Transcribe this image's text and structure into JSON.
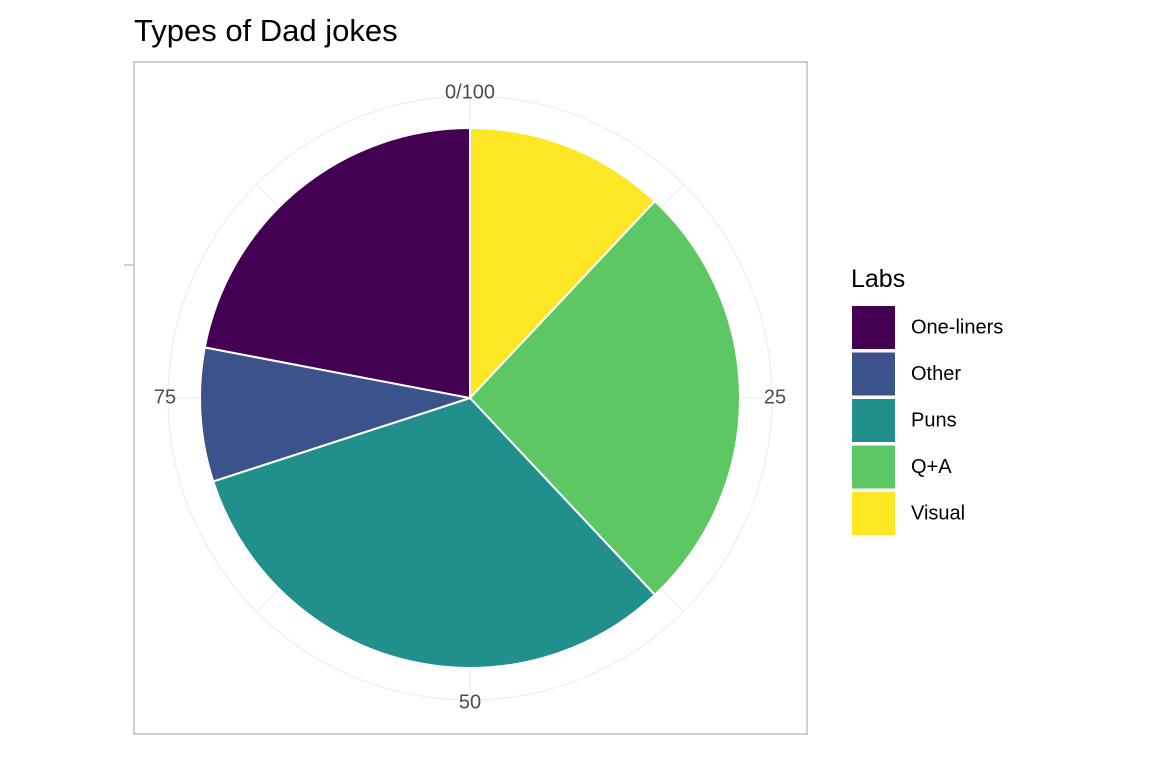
{
  "chart_data": {
    "type": "pie",
    "title": "Types of Dad jokes",
    "legend_title": "Labs",
    "legend_position": "right",
    "theta_ticks": [
      "0/100",
      "25",
      "50",
      "75"
    ],
    "categories": [
      "One-liners",
      "Other",
      "Puns",
      "Q+A",
      "Visual"
    ],
    "values": [
      22,
      8,
      32,
      26,
      12
    ],
    "colors": {
      "One-liners": "#440154",
      "Other": "#3B528B",
      "Puns": "#21908C",
      "Q+A": "#5DC863",
      "Visual": "#FDE725"
    },
    "stack_order_clockwise_from_top": [
      "Visual",
      "Q+A",
      "Puns",
      "Other",
      "One-liners"
    ],
    "grid": true
  }
}
